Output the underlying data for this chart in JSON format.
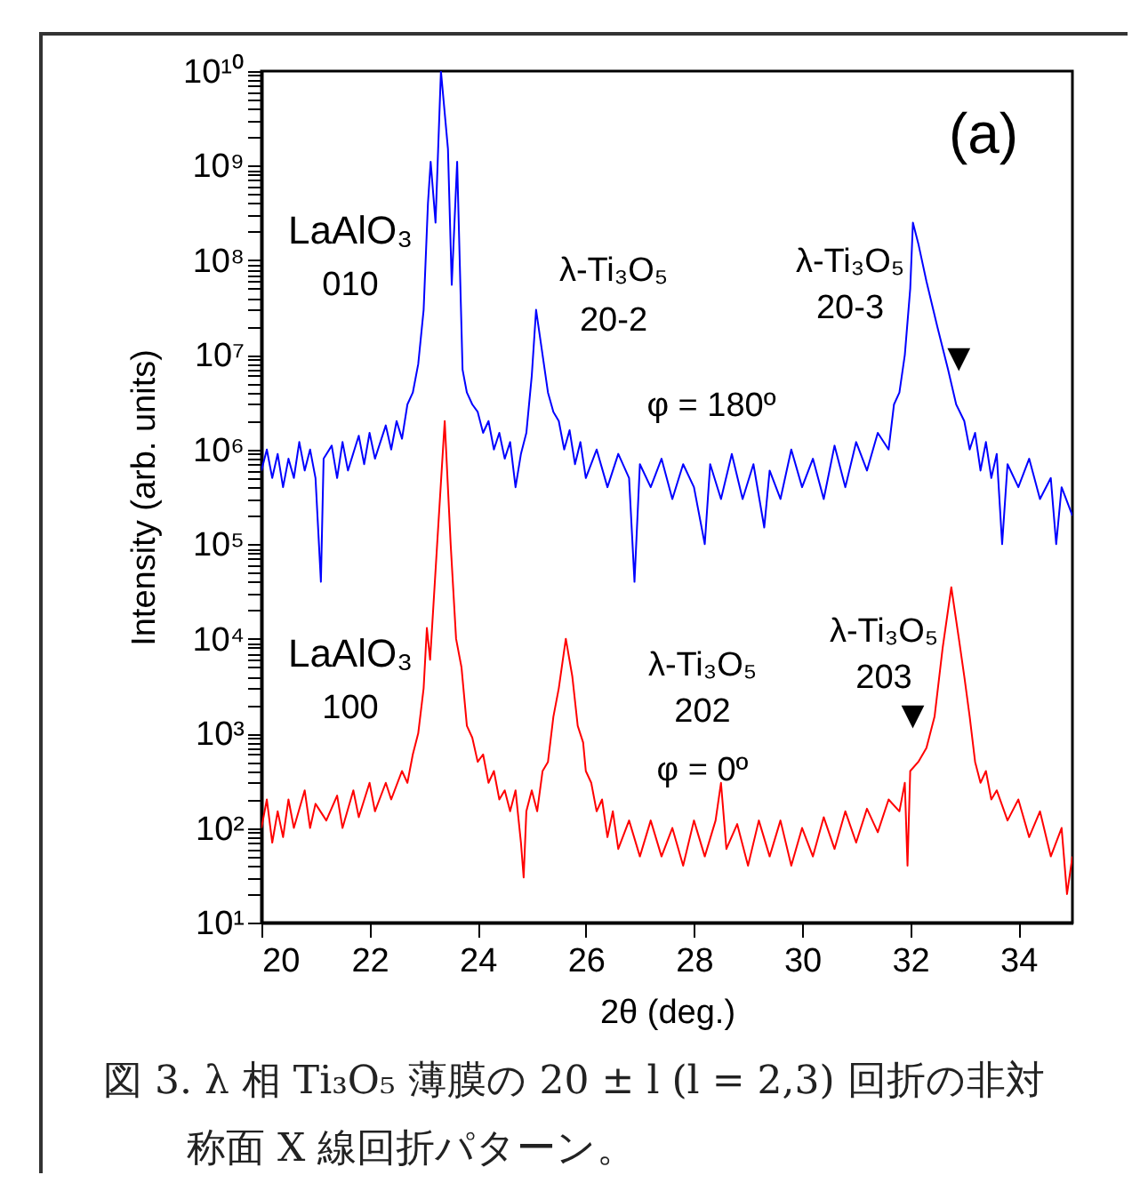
{
  "chart_data": {
    "type": "line",
    "xlabel": "2θ (deg.)",
    "ylabel": "Intensity (arb. units)",
    "log": true,
    "xlim": [
      20,
      35
    ],
    "xticks": [
      20,
      22,
      24,
      26,
      28,
      30,
      32,
      34
    ],
    "ylim": [
      10,
      10000000000
    ],
    "yticks": [
      {
        "value": 10,
        "label": "10¹"
      },
      {
        "value": 20,
        "label": null
      },
      {
        "value": 30,
        "label": null
      },
      {
        "value": 40,
        "label": null
      },
      {
        "value": 50,
        "label": null
      },
      {
        "value": 60,
        "label": null
      },
      {
        "value": 70,
        "label": null
      },
      {
        "value": 80,
        "label": null
      },
      {
        "value": 90,
        "label": null
      },
      {
        "value": 100,
        "label": "10²"
      },
      {
        "value": 200,
        "label": null
      },
      {
        "value": 300,
        "label": null
      },
      {
        "value": 400,
        "label": null
      },
      {
        "value": 500,
        "label": null
      },
      {
        "value": 600,
        "label": null
      },
      {
        "value": 700,
        "label": null
      },
      {
        "value": 800,
        "label": null
      },
      {
        "value": 900,
        "label": null
      },
      {
        "value": 1000,
        "label": "10³"
      },
      {
        "value": 2000,
        "label": null
      },
      {
        "value": 3000,
        "label": null
      },
      {
        "value": 4000,
        "label": null
      },
      {
        "value": 5000,
        "label": null
      },
      {
        "value": 6000,
        "label": null
      },
      {
        "value": 7000,
        "label": null
      },
      {
        "value": 8000,
        "label": null
      },
      {
        "value": 9000,
        "label": null
      },
      {
        "value": 10000,
        "label": "10⁴"
      },
      {
        "value": 20000,
        "label": null
      },
      {
        "value": 30000,
        "label": null
      },
      {
        "value": 40000,
        "label": null
      },
      {
        "value": 50000,
        "label": null
      },
      {
        "value": 60000,
        "label": null
      },
      {
        "value": 70000,
        "label": null
      },
      {
        "value": 80000,
        "label": null
      },
      {
        "value": 90000,
        "label": null
      },
      {
        "value": 100000,
        "label": "10⁵"
      },
      {
        "value": 200000,
        "label": null
      },
      {
        "value": 300000,
        "label": null
      },
      {
        "value": 400000,
        "label": null
      },
      {
        "value": 500000,
        "label": null
      },
      {
        "value": 600000,
        "label": null
      },
      {
        "value": 700000,
        "label": null
      },
      {
        "value": 800000,
        "label": null
      },
      {
        "value": 900000,
        "label": null
      },
      {
        "value": 1000000,
        "label": "10⁶"
      },
      {
        "value": 2000000,
        "label": null
      },
      {
        "value": 3000000,
        "label": null
      },
      {
        "value": 4000000,
        "label": null
      },
      {
        "value": 5000000,
        "label": null
      },
      {
        "value": 6000000,
        "label": null
      },
      {
        "value": 7000000,
        "label": null
      },
      {
        "value": 8000000,
        "label": null
      },
      {
        "value": 9000000,
        "label": null
      },
      {
        "value": 10000000,
        "label": "10⁷"
      },
      {
        "value": 20000000,
        "label": null
      },
      {
        "value": 30000000,
        "label": null
      },
      {
        "value": 40000000,
        "label": null
      },
      {
        "value": 50000000,
        "label": null
      },
      {
        "value": 60000000,
        "label": null
      },
      {
        "value": 70000000,
        "label": null
      },
      {
        "value": 80000000,
        "label": null
      },
      {
        "value": 90000000,
        "label": null
      },
      {
        "value": 100000000,
        "label": "10⁸"
      },
      {
        "value": 200000000,
        "label": null
      },
      {
        "value": 300000000,
        "label": null
      },
      {
        "value": 400000000,
        "label": null
      },
      {
        "value": 500000000,
        "label": null
      },
      {
        "value": 600000000,
        "label": null
      },
      {
        "value": 700000000,
        "label": null
      },
      {
        "value": 800000000,
        "label": null
      },
      {
        "value": 900000000,
        "label": null
      },
      {
        "value": 1000000000,
        "label": "10⁹"
      },
      {
        "value": 2000000000,
        "label": null
      },
      {
        "value": 3000000000,
        "label": null
      },
      {
        "value": 4000000000,
        "label": null
      },
      {
        "value": 5000000000,
        "label": null
      },
      {
        "value": 6000000000,
        "label": null
      },
      {
        "value": 7000000000,
        "label": null
      },
      {
        "value": 8000000000,
        "label": null
      },
      {
        "value": 9000000000,
        "label": null
      },
      {
        "value": 10000000000,
        "label": "10¹⁰"
      }
    ],
    "series": [
      {
        "color": "#0000ff",
        "x": [
          20.0,
          20.1,
          20.2,
          20.3,
          20.4,
          20.5,
          20.6,
          20.7,
          20.8,
          20.9,
          21.0,
          21.1,
          21.15,
          21.3,
          21.4,
          21.5,
          21.6,
          21.8,
          21.9,
          22.0,
          22.1,
          22.3,
          22.4,
          22.5,
          22.6,
          22.7,
          22.8,
          22.9,
          23.0,
          23.08,
          23.13,
          23.22,
          23.32,
          23.45,
          23.52,
          23.62,
          23.72,
          23.8,
          23.9,
          24.0,
          24.1,
          24.2,
          24.3,
          24.4,
          24.5,
          24.6,
          24.7,
          24.8,
          24.9,
          25.0,
          25.08,
          25.2,
          25.3,
          25.4,
          25.5,
          25.6,
          25.7,
          25.8,
          25.9,
          26.0,
          26.2,
          26.4,
          26.6,
          26.8,
          26.9,
          27.0,
          27.2,
          27.4,
          27.6,
          27.8,
          28.0,
          28.2,
          28.3,
          28.5,
          28.7,
          28.9,
          29.1,
          29.3,
          29.4,
          29.6,
          29.8,
          30.0,
          30.2,
          30.4,
          30.6,
          30.8,
          31.0,
          31.2,
          31.4,
          31.6,
          31.7,
          31.8,
          31.9,
          32.0,
          32.05,
          32.15,
          32.3,
          32.5,
          32.7,
          32.85,
          33.0,
          33.1,
          33.2,
          33.3,
          33.4,
          33.5,
          33.6,
          33.7,
          33.8,
          34.0,
          34.2,
          34.4,
          34.6,
          34.7,
          34.8,
          35.0
        ],
        "values": [
          600000,
          1000000,
          500000,
          900000,
          400000,
          800000,
          500000,
          1200000,
          600000,
          1000000,
          500000,
          40000,
          800000,
          1100000,
          500000,
          1200000,
          600000,
          1400000,
          700000,
          1500000,
          800000,
          1800000,
          1000000,
          2000000,
          1300000,
          3000000,
          4000000,
          8000000,
          30000000,
          400000000,
          1100000000,
          250000000,
          10000000000,
          1500000000,
          55000000,
          1100000000,
          7000000,
          4000000,
          3000000,
          2500000,
          1500000,
          2000000,
          1000000,
          1500000,
          800000,
          1200000,
          400000,
          900000,
          1500000,
          6000000,
          30000000,
          10000000,
          4000000,
          2500000,
          2000000,
          1000000,
          1600000,
          700000,
          1200000,
          500000,
          1000000,
          400000,
          900000,
          500000,
          40000,
          700000,
          400000,
          800000,
          300000,
          700000,
          400000,
          100000,
          700000,
          300000,
          900000,
          300000,
          700000,
          150000,
          600000,
          300000,
          1000000,
          400000,
          800000,
          300000,
          1100000,
          400000,
          1200000,
          600000,
          1500000,
          1000000,
          3000000,
          4000000,
          10000000,
          50000000,
          250000000,
          150000000,
          60000000,
          20000000,
          7000000,
          3000000,
          2000000,
          1000000,
          1500000,
          600000,
          1200000,
          500000,
          900000,
          100000,
          700000,
          400000,
          800000,
          300000,
          500000,
          100000,
          400000,
          200000
        ]
      },
      {
        "color": "#ff0000",
        "x": [
          20.0,
          20.1,
          20.2,
          20.3,
          20.4,
          20.5,
          20.6,
          20.8,
          20.9,
          21.0,
          21.2,
          21.4,
          21.5,
          21.7,
          21.8,
          22.0,
          22.1,
          22.3,
          22.4,
          22.6,
          22.7,
          22.8,
          22.9,
          23.0,
          23.06,
          23.12,
          23.25,
          23.39,
          23.5,
          23.6,
          23.7,
          23.8,
          23.9,
          24.0,
          24.1,
          24.2,
          24.3,
          24.4,
          24.5,
          24.6,
          24.7,
          24.8,
          24.85,
          24.9,
          25.0,
          25.1,
          25.2,
          25.3,
          25.4,
          25.5,
          25.63,
          25.75,
          25.85,
          25.95,
          26.0,
          26.1,
          26.2,
          26.3,
          26.4,
          26.5,
          26.6,
          26.8,
          27.0,
          27.2,
          27.4,
          27.6,
          27.8,
          28.0,
          28.2,
          28.4,
          28.5,
          28.6,
          28.8,
          29.0,
          29.2,
          29.4,
          29.6,
          29.8,
          30.0,
          30.2,
          30.4,
          30.6,
          30.8,
          31.0,
          31.2,
          31.4,
          31.6,
          31.8,
          31.9,
          31.95,
          32.0,
          32.15,
          32.3,
          32.45,
          32.6,
          32.76,
          32.9,
          33.0,
          33.1,
          33.2,
          33.3,
          33.4,
          33.5,
          33.6,
          33.8,
          34.0,
          34.2,
          34.4,
          34.6,
          34.8,
          34.9,
          35.0
        ],
        "values": [
          100,
          200,
          70,
          150,
          80,
          200,
          100,
          250,
          100,
          180,
          120,
          220,
          100,
          250,
          130,
          300,
          150,
          300,
          200,
          400,
          300,
          600,
          1000,
          3000,
          13000,
          6000,
          100000,
          2000000,
          100000,
          10000,
          5000,
          1200,
          900,
          500,
          600,
          300,
          400,
          200,
          250,
          150,
          250,
          70,
          30,
          150,
          250,
          150,
          400,
          500,
          1500,
          3000,
          10000,
          4000,
          1200,
          800,
          400,
          300,
          150,
          200,
          80,
          150,
          60,
          120,
          50,
          120,
          50,
          100,
          40,
          120,
          50,
          120,
          300,
          60,
          110,
          40,
          120,
          50,
          120,
          40,
          100,
          50,
          130,
          60,
          150,
          70,
          160,
          90,
          200,
          150,
          300,
          40,
          400,
          500,
          700,
          1500,
          8000,
          35000,
          10000,
          4000,
          1500,
          500,
          300,
          400,
          200,
          250,
          120,
          200,
          80,
          150,
          50,
          100,
          20,
          50
        ]
      }
    ],
    "annotations": [
      "(a)",
      "LaAlO₃\n010",
      "λ-Ti₃O₅\n20-2",
      "λ-Ti₃O₅\n20-3",
      "φ = 180º",
      "LaAlO₃\n100",
      "λ-Ti₃O₅\n202",
      "λ-Ti₃O₅\n203",
      "φ = 0º",
      {
        "text": "▼",
        "x": 32.9,
        "y": 3000000
      },
      {
        "text": "▼",
        "x": 32.05,
        "y": 500
      },
      "図 3. λ 相 Ti₃O₅ 薄膜の 20 ± l (l = 2,3) 回折の非対称面 X 線回折パターン。"
    ]
  }
}
